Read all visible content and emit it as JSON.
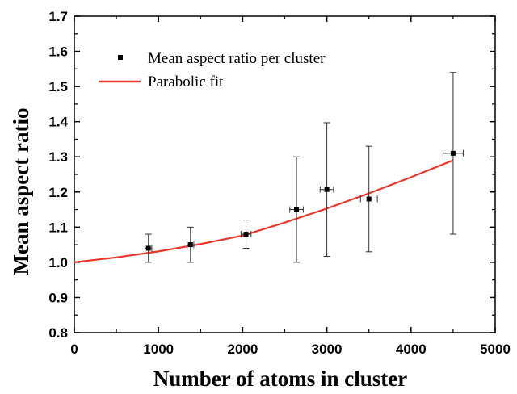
{
  "chart_data": {
    "type": "scatter",
    "xlabel": "Number of atoms in cluster",
    "ylabel": "Mean aspect ratio",
    "xlim": [
      0,
      5000
    ],
    "ylim": [
      0.8,
      1.7
    ],
    "xticks": [
      "0",
      "1000",
      "2000",
      "3000",
      "4000",
      "5000"
    ],
    "yticks": [
      "0.8",
      "0.9",
      "1.0",
      "1.1",
      "1.2",
      "1.3",
      "1.4",
      "1.5",
      "1.6",
      "1.7"
    ],
    "grid": false,
    "legend_position": "top-left",
    "series": [
      {
        "name": "Mean aspect ratio per cluster",
        "kind": "points-with-error-bars",
        "color": "#000000",
        "points": [
          {
            "x": 880,
            "y": 1.04,
            "yerr": 0.04,
            "xerr": 40
          },
          {
            "x": 1380,
            "y": 1.05,
            "yerr": 0.05,
            "xerr": 40
          },
          {
            "x": 2040,
            "y": 1.08,
            "yerr": 0.04,
            "xerr": 60
          },
          {
            "x": 2640,
            "y": 1.15,
            "yerr": 0.15,
            "xerr": 80
          },
          {
            "x": 3000,
            "y": 1.207,
            "yerr": 0.19,
            "xerr": 80
          },
          {
            "x": 3500,
            "y": 1.18,
            "yerr": 0.15,
            "xerr": 100
          },
          {
            "x": 4500,
            "y": 1.31,
            "yerr": 0.23,
            "xerr": 120
          }
        ]
      },
      {
        "name": "Parabolic fit",
        "kind": "line",
        "color": "#e8392c",
        "x": [
          0,
          500,
          1000,
          1500,
          2000,
          2500,
          3000,
          3500,
          4000,
          4500
        ],
        "y": [
          1.0,
          1.014,
          1.031,
          1.052,
          1.076,
          1.113,
          1.153,
          1.196,
          1.242,
          1.29
        ]
      }
    ]
  }
}
